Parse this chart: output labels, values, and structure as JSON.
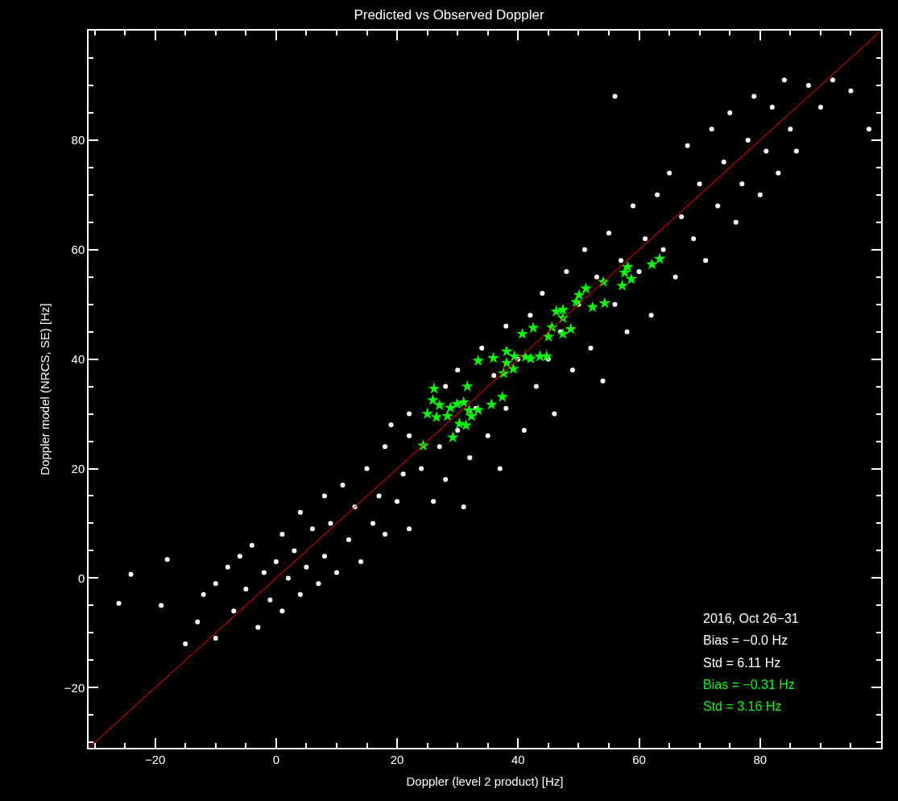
{
  "chart_data": {
    "type": "scatter",
    "title": "Predicted vs Observed Doppler",
    "xlabel": "Doppler (level 2 product) [Hz]",
    "ylabel": "Doppler model (NRCS, SE) [Hz]",
    "xlim": [
      -31,
      100
    ],
    "ylim": [
      -31,
      100
    ],
    "xticks": [
      {
        "value": -30,
        "label": null
      },
      {
        "value": -25,
        "label": null
      },
      {
        "value": -20,
        "label": "−20"
      },
      {
        "value": -15,
        "label": null
      },
      {
        "value": -10,
        "label": null
      },
      {
        "value": -5,
        "label": null
      },
      0,
      {
        "value": 5,
        "label": null
      },
      {
        "value": 10,
        "label": null
      },
      {
        "value": 15,
        "label": null
      },
      20,
      {
        "value": 25,
        "label": null
      },
      {
        "value": 30,
        "label": null
      },
      {
        "value": 35,
        "label": null
      },
      40,
      {
        "value": 45,
        "label": null
      },
      {
        "value": 50,
        "label": null
      },
      {
        "value": 55,
        "label": null
      },
      60,
      {
        "value": 65,
        "label": null
      },
      {
        "value": 70,
        "label": null
      },
      {
        "value": 75,
        "label": null
      },
      80,
      {
        "value": 85,
        "label": null
      },
      {
        "value": 90,
        "label": null
      },
      {
        "value": 95,
        "label": null
      }
    ],
    "yticks": [
      {
        "value": -30,
        "label": null
      },
      {
        "value": -25,
        "label": null
      },
      {
        "value": -20,
        "label": "−20"
      },
      {
        "value": -15,
        "label": null
      },
      {
        "value": -10,
        "label": null
      },
      {
        "value": -5,
        "label": null
      },
      0,
      {
        "value": 5,
        "label": null
      },
      {
        "value": 10,
        "label": null
      },
      {
        "value": 15,
        "label": null
      },
      20,
      {
        "value": 25,
        "label": null
      },
      {
        "value": 30,
        "label": null
      },
      {
        "value": 35,
        "label": null
      },
      40,
      {
        "value": 45,
        "label": null
      },
      {
        "value": 50,
        "label": null
      },
      {
        "value": 55,
        "label": null
      },
      60,
      {
        "value": 65,
        "label": null
      },
      {
        "value": 70,
        "label": null
      },
      {
        "value": 75,
        "label": null
      },
      80,
      {
        "value": 85,
        "label": null
      },
      {
        "value": 90,
        "label": null
      },
      {
        "value": 95,
        "label": null
      }
    ],
    "grid": false,
    "series": [
      {
        "marker": "circle",
        "color": "#ffffff",
        "x": [
          -24,
          -26,
          -18,
          -19,
          -15,
          -13,
          -12,
          -10,
          -10,
          -8,
          -7,
          -6,
          -5,
          -4,
          -3,
          -2,
          -1,
          0,
          1,
          1,
          2,
          3,
          4,
          4,
          5,
          6,
          7,
          8,
          8,
          9,
          10,
          11,
          12,
          13,
          14,
          15,
          16,
          17,
          18,
          18,
          19,
          20,
          21,
          22,
          22,
          24,
          22,
          26,
          27,
          28,
          28,
          30,
          30,
          31,
          32,
          33,
          34,
          35,
          36,
          37,
          38,
          38,
          40,
          41,
          42,
          43,
          44,
          45,
          46,
          47,
          48,
          49,
          50,
          51,
          52,
          53,
          54,
          55,
          56,
          57,
          58,
          59,
          60,
          61,
          62,
          63,
          64,
          65,
          66,
          67,
          68,
          69,
          70,
          71,
          72,
          73,
          74,
          75,
          76,
          77,
          78,
          79,
          80,
          81,
          82,
          83,
          84,
          85,
          86,
          88,
          90,
          92,
          95,
          98,
          56
        ],
        "values": [
          0.7,
          -4.6,
          3.4,
          -5,
          -12,
          -8,
          -3,
          -1,
          -11,
          2,
          -6,
          4,
          -2,
          6,
          -9,
          1,
          -4,
          3,
          8,
          -6,
          0,
          5,
          12,
          -3,
          2,
          9,
          -1,
          15,
          4,
          10,
          1,
          17,
          7,
          13,
          3,
          20,
          10,
          15,
          24,
          8,
          28,
          14,
          19,
          26,
          9,
          20,
          30,
          14,
          24,
          35,
          18,
          27,
          38,
          13,
          22,
          31,
          42,
          26,
          37,
          20,
          46,
          31,
          40,
          27,
          48,
          35,
          52,
          40,
          30,
          45,
          56,
          38,
          50,
          60,
          42,
          55,
          36,
          63,
          50,
          58,
          45,
          68,
          56,
          62,
          48,
          70,
          60,
          74,
          55,
          66,
          79,
          62,
          72,
          58,
          82,
          68,
          76,
          85,
          65,
          72,
          80,
          88,
          70,
          78,
          86,
          74,
          91,
          82,
          78,
          90,
          86,
          91,
          89,
          82,
          88
        ]
      },
      {
        "marker": "star",
        "color": "#00ff00",
        "x": [
          63.4,
          62.1,
          58.1,
          57.6,
          58.7,
          57.2,
          54.1,
          51.2,
          50.1,
          49.6,
          54.3,
          52.3,
          46.3,
          47.4,
          47.4,
          42.5,
          40.7,
          45.6,
          48.7,
          47.4,
          45.0,
          38.1,
          39.4,
          41.2,
          42.1,
          43.6,
          44.7,
          35.9,
          33.4,
          38.1,
          39.2,
          37.6,
          26.1,
          31.6,
          25.9,
          27.0,
          28.8,
          29.9,
          31.0,
          31.9,
          33.4,
          35.6,
          37.4,
          25.0,
          26.5,
          28.3,
          32.3,
          30.3,
          31.4,
          29.2,
          24.3
        ],
        "values": [
          58.3,
          57.3,
          56.8,
          55.8,
          54.6,
          53.4,
          54.1,
          52.9,
          51.7,
          50.4,
          50.2,
          49.5,
          48.7,
          49.0,
          47.5,
          45.7,
          44.6,
          45.8,
          45.5,
          44.6,
          44.1,
          41.4,
          40.5,
          40.4,
          40.1,
          40.5,
          40.5,
          40.2,
          39.7,
          39.3,
          38.2,
          37.4,
          34.6,
          35.0,
          32.5,
          31.6,
          31.1,
          31.8,
          32.1,
          30.6,
          30.7,
          31.7,
          33.1,
          30.0,
          29.4,
          29.6,
          29.6,
          28.2,
          27.9,
          25.7,
          24.2
        ]
      },
      {
        "type": "line",
        "marker": "none",
        "line_style": "solid",
        "color": "#cc0000",
        "x": [
          -31,
          100
        ],
        "values": [
          -31,
          100
        ]
      }
    ],
    "annotations": [
      "2016, Oct 26−31",
      "Bias = −0.0 Hz",
      "Std = 6.11 Hz",
      "Bias = −0.31 Hz",
      "Std = 3.16 Hz"
    ]
  }
}
